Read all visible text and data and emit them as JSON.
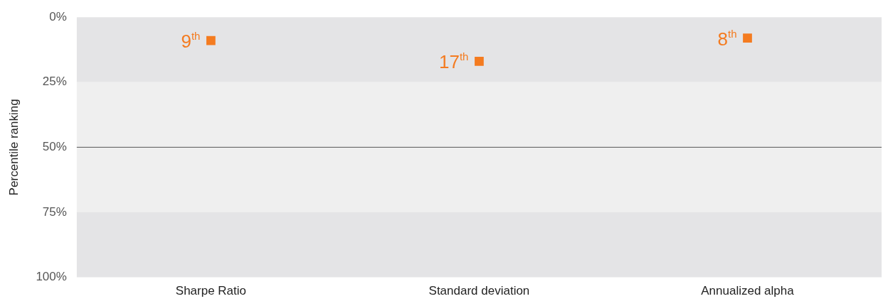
{
  "chart_data": {
    "type": "scatter",
    "ylabel": "Percentile ranking",
    "categories": [
      "Sharpe Ratio",
      "Standard deviation",
      "Annualized alpha"
    ],
    "series": [
      {
        "color": "#f47b20",
        "values": [
          9,
          17,
          8
        ],
        "value_labels": [
          "9$^{th}$",
          "17$^{th}$",
          "8$^{th}$"
        ]
      }
    ],
    "ylim": [
      100,
      0
    ],
    "yticks": [
      {
        "value": 0,
        "label": "0%"
      },
      {
        "value": 25,
        "label": "25%"
      },
      {
        "value": 50,
        "label": "50%"
      },
      {
        "value": 75,
        "label": "75%"
      },
      {
        "value": 100,
        "label": "100%"
      }
    ],
    "bands": [
      {
        "axis": "y",
        "from": 0,
        "to": 25,
        "color": "#e4e4e6"
      },
      {
        "axis": "y",
        "from": 25,
        "to": 75,
        "color": "#efefef"
      },
      {
        "axis": "y",
        "from": 75,
        "to": 100,
        "color": "#e4e4e6"
      }
    ],
    "ref_lines": [
      {
        "axis": "y",
        "value": 50,
        "color": "#555555",
        "line_style": "solid"
      }
    ],
    "grid": false,
    "legend": false,
    "marker": "square"
  }
}
